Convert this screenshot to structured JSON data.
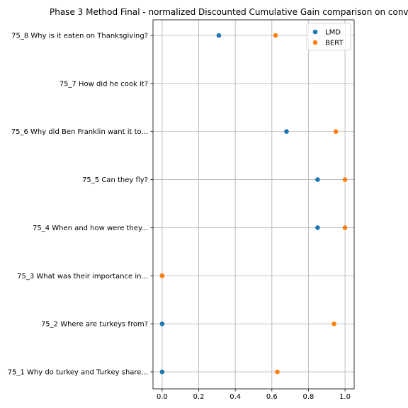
{
  "chart_data": {
    "type": "scatter",
    "title": "Phase 3 Method Final - normalized Discounted Cumulative Gain comparison on conv",
    "xlabel": "",
    "ylabel": "",
    "xlim": [
      -0.05,
      1.05
    ],
    "xticks": [
      0.0,
      0.2,
      0.4,
      0.6,
      0.8,
      1.0
    ],
    "xtick_labels": [
      "0.0",
      "0.2",
      "0.4",
      "0.6",
      "0.8",
      "1.0"
    ],
    "categories": [
      "75_1 Why do turkey and Turkey share...",
      "75_2 Where are turkeys from?",
      "75_3 What was their importance in...",
      "75_4 When and how were they...",
      "75_5 Can they fly?",
      "75_6 Why did Ben Franklin want it to...",
      "75_7 How did he cook it?",
      "75_8 Why is it eaten on Thanksgiving?"
    ],
    "series": [
      {
        "name": "LMD",
        "color": "#1f77b4",
        "values": [
          0.0,
          0.0,
          0.0,
          0.85,
          0.85,
          0.68,
          null,
          0.31
        ]
      },
      {
        "name": "BERT",
        "color": "#ff7f0e",
        "values": [
          0.63,
          0.94,
          0.0,
          1.0,
          1.0,
          0.95,
          null,
          0.62
        ]
      }
    ],
    "grid": true,
    "legend_position": "top-right"
  }
}
